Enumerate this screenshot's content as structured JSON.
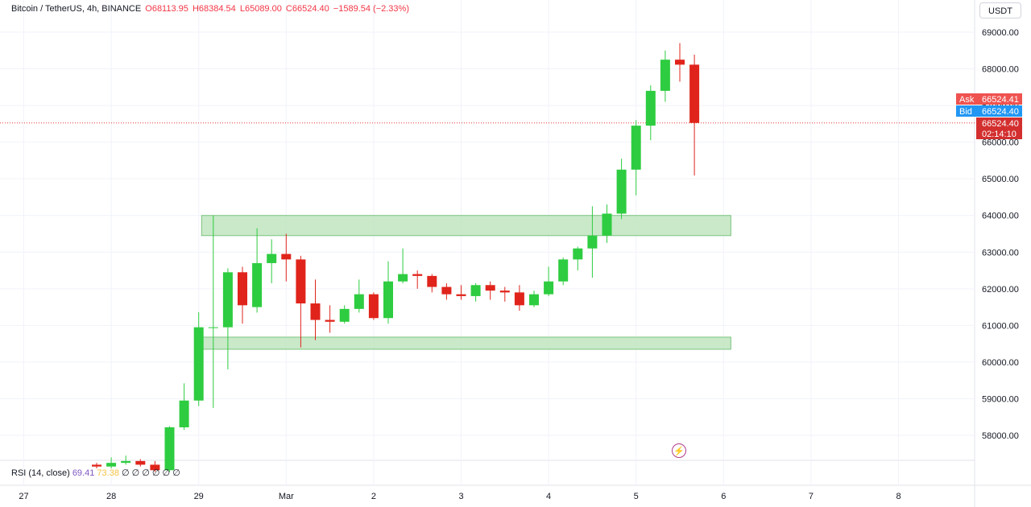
{
  "header": {
    "symbol": "Bitcoin / TetherUS, 4h, BINANCE",
    "open": "O68113.95",
    "high": "H68384.54",
    "low": "L65089.00",
    "close": "C66524.40",
    "change": "−1589.54 (−2.33%)"
  },
  "currency_button": "USDT",
  "rsi": {
    "label": "RSI (14, close)",
    "value1": "69.41",
    "value2": "73.38",
    "zeros": "∅ ∅ ∅ ∅ ∅ ∅"
  },
  "price_tags": {
    "ask_label": "Ask",
    "ask_value": "66524.41",
    "bid_label": "Bid",
    "bid_value": "66524.40",
    "last_value": "66524.40",
    "countdown": "02:14:10"
  },
  "icons": {
    "alert": "lightning-icon"
  },
  "colors": {
    "up": "#2ecc40",
    "down": "#e0241b",
    "zone": "#bfe5c0",
    "zone_border": "#7bc47e",
    "ask": "#ef5350",
    "bid": "#2196f3",
    "last": "#d32f2f"
  },
  "chart_data": {
    "type": "candlestick",
    "y_ticks": [
      "69000.00",
      "68000.00",
      "67000.00",
      "66000.00",
      "65000.00",
      "64000.00",
      "63000.00",
      "62000.00",
      "61000.00",
      "60000.00",
      "59000.00",
      "58000.00"
    ],
    "y_tick_values": [
      69000,
      68000,
      67000,
      66000,
      65000,
      64000,
      63000,
      62000,
      61000,
      60000,
      59000,
      58000
    ],
    "x_labels": [
      "27",
      "28",
      "29",
      "Mar",
      "2",
      "3",
      "4",
      "5",
      "6",
      "7",
      "8"
    ],
    "x_label_index": [
      -5,
      1,
      7,
      13,
      19,
      25,
      31,
      37,
      43,
      49,
      55
    ],
    "last_price": 66524.4,
    "zones": [
      {
        "from_index": 7.2,
        "to_index": 43.5,
        "low": 63450,
        "high": 64000
      },
      {
        "from_index": 7.2,
        "to_index": 43.5,
        "low": 60350,
        "high": 60680
      }
    ],
    "candles": [
      {
        "o": 57200,
        "h": 57250,
        "l": 57100,
        "c": 57150
      },
      {
        "o": 57150,
        "h": 57400,
        "l": 57100,
        "c": 57250
      },
      {
        "o": 57250,
        "h": 57450,
        "l": 57200,
        "c": 57300
      },
      {
        "o": 57300,
        "h": 57350,
        "l": 57150,
        "c": 57200
      },
      {
        "o": 57200,
        "h": 57300,
        "l": 57000,
        "c": 57050
      },
      {
        "o": 57050,
        "h": 58250,
        "l": 57000,
        "c": 58220
      },
      {
        "o": 58220,
        "h": 59420,
        "l": 58150,
        "c": 58950
      },
      {
        "o": 58950,
        "h": 61360,
        "l": 58800,
        "c": 60950
      },
      {
        "o": 60950,
        "h": 64000,
        "l": 58750,
        "c": 60950
      },
      {
        "o": 60950,
        "h": 62560,
        "l": 59800,
        "c": 62450
      },
      {
        "o": 62450,
        "h": 62600,
        "l": 61050,
        "c": 61550
      },
      {
        "o": 61500,
        "h": 63650,
        "l": 61350,
        "c": 62700
      },
      {
        "o": 62700,
        "h": 63350,
        "l": 62150,
        "c": 62950
      },
      {
        "o": 62950,
        "h": 63500,
        "l": 62200,
        "c": 62800
      },
      {
        "o": 62800,
        "h": 62900,
        "l": 60400,
        "c": 61600
      },
      {
        "o": 61600,
        "h": 62250,
        "l": 60600,
        "c": 61150
      },
      {
        "o": 61150,
        "h": 61550,
        "l": 60800,
        "c": 61100
      },
      {
        "o": 61100,
        "h": 61550,
        "l": 61050,
        "c": 61450
      },
      {
        "o": 61450,
        "h": 62250,
        "l": 61350,
        "c": 61850
      },
      {
        "o": 61850,
        "h": 61900,
        "l": 61150,
        "c": 61200
      },
      {
        "o": 61200,
        "h": 62750,
        "l": 61050,
        "c": 62200
      },
      {
        "o": 62200,
        "h": 63100,
        "l": 62150,
        "c": 62400
      },
      {
        "o": 62400,
        "h": 62500,
        "l": 62000,
        "c": 62350
      },
      {
        "o": 62350,
        "h": 62400,
        "l": 61900,
        "c": 62050
      },
      {
        "o": 62050,
        "h": 62150,
        "l": 61700,
        "c": 61850
      },
      {
        "o": 61850,
        "h": 62100,
        "l": 61700,
        "c": 61800
      },
      {
        "o": 61800,
        "h": 62150,
        "l": 61650,
        "c": 62100
      },
      {
        "o": 62100,
        "h": 62200,
        "l": 61700,
        "c": 61950
      },
      {
        "o": 61950,
        "h": 62050,
        "l": 61650,
        "c": 61900
      },
      {
        "o": 61900,
        "h": 62100,
        "l": 61400,
        "c": 61550
      },
      {
        "o": 61550,
        "h": 61950,
        "l": 61500,
        "c": 61850
      },
      {
        "o": 61850,
        "h": 62600,
        "l": 61800,
        "c": 62200
      },
      {
        "o": 62200,
        "h": 62850,
        "l": 62100,
        "c": 62800
      },
      {
        "o": 62800,
        "h": 63150,
        "l": 62500,
        "c": 63100
      },
      {
        "o": 63100,
        "h": 64250,
        "l": 62300,
        "c": 63450
      },
      {
        "o": 63450,
        "h": 64300,
        "l": 63250,
        "c": 64050
      },
      {
        "o": 64050,
        "h": 65550,
        "l": 63900,
        "c": 65250
      },
      {
        "o": 65250,
        "h": 66600,
        "l": 64550,
        "c": 66450
      },
      {
        "o": 66450,
        "h": 67550,
        "l": 66050,
        "c": 67400
      },
      {
        "o": 67400,
        "h": 68500,
        "l": 67100,
        "c": 68250
      },
      {
        "o": 68250,
        "h": 68700,
        "l": 67650,
        "c": 68113.95
      },
      {
        "o": 68113.95,
        "h": 68384.54,
        "l": 65089.0,
        "c": 66524.4
      }
    ]
  }
}
